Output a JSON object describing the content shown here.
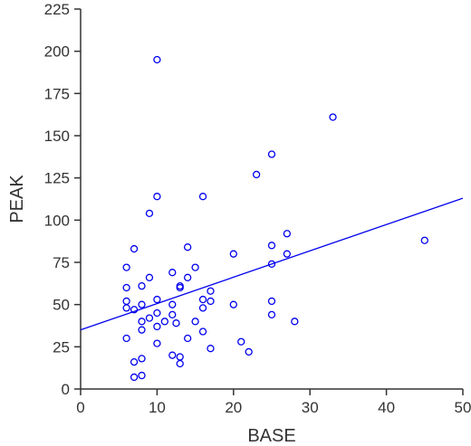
{
  "chart_data": {
    "type": "scatter",
    "title": "",
    "xlabel": "BASE",
    "ylabel": "PEAK",
    "xlim": [
      0,
      50
    ],
    "ylim": [
      0,
      225
    ],
    "xticks": [
      0,
      10,
      20,
      30,
      40,
      50
    ],
    "yticks": [
      0,
      25,
      50,
      75,
      100,
      125,
      150,
      175,
      200,
      225
    ],
    "grid": false,
    "legend": "none",
    "marker": "open-circle",
    "point_color": "#0000ee",
    "line_color": "#0000ee",
    "axis_color": "#333333",
    "points": [
      {
        "x": 6,
        "y": 72
      },
      {
        "x": 6,
        "y": 60
      },
      {
        "x": 6,
        "y": 52
      },
      {
        "x": 6,
        "y": 48
      },
      {
        "x": 6,
        "y": 30
      },
      {
        "x": 7,
        "y": 83
      },
      {
        "x": 7,
        "y": 47
      },
      {
        "x": 7,
        "y": 16
      },
      {
        "x": 7,
        "y": 7
      },
      {
        "x": 8,
        "y": 61
      },
      {
        "x": 8,
        "y": 50
      },
      {
        "x": 8,
        "y": 40
      },
      {
        "x": 8,
        "y": 35
      },
      {
        "x": 8,
        "y": 18
      },
      {
        "x": 8,
        "y": 8
      },
      {
        "x": 9,
        "y": 104
      },
      {
        "x": 9,
        "y": 66
      },
      {
        "x": 9,
        "y": 42
      },
      {
        "x": 10,
        "y": 195
      },
      {
        "x": 10,
        "y": 114
      },
      {
        "x": 10,
        "y": 53
      },
      {
        "x": 10,
        "y": 45
      },
      {
        "x": 10,
        "y": 37
      },
      {
        "x": 10,
        "y": 27
      },
      {
        "x": 11,
        "y": 40
      },
      {
        "x": 12,
        "y": 69
      },
      {
        "x": 12,
        "y": 50
      },
      {
        "x": 12,
        "y": 44
      },
      {
        "x": 12,
        "y": 20
      },
      {
        "x": 12.5,
        "y": 39
      },
      {
        "x": 13,
        "y": 61
      },
      {
        "x": 13,
        "y": 60
      },
      {
        "x": 13,
        "y": 19
      },
      {
        "x": 13,
        "y": 15
      },
      {
        "x": 14,
        "y": 84
      },
      {
        "x": 14,
        "y": 66
      },
      {
        "x": 14,
        "y": 30
      },
      {
        "x": 15,
        "y": 72
      },
      {
        "x": 15,
        "y": 40
      },
      {
        "x": 16,
        "y": 114
      },
      {
        "x": 16,
        "y": 53
      },
      {
        "x": 16,
        "y": 48
      },
      {
        "x": 16,
        "y": 34
      },
      {
        "x": 17,
        "y": 58
      },
      {
        "x": 17,
        "y": 52
      },
      {
        "x": 17,
        "y": 24
      },
      {
        "x": 20,
        "y": 80
      },
      {
        "x": 20,
        "y": 50
      },
      {
        "x": 21,
        "y": 28
      },
      {
        "x": 22,
        "y": 22
      },
      {
        "x": 23,
        "y": 127
      },
      {
        "x": 25,
        "y": 139
      },
      {
        "x": 25,
        "y": 85
      },
      {
        "x": 25,
        "y": 74
      },
      {
        "x": 25,
        "y": 52
      },
      {
        "x": 25,
        "y": 44
      },
      {
        "x": 27,
        "y": 92
      },
      {
        "x": 27,
        "y": 80
      },
      {
        "x": 28,
        "y": 40
      },
      {
        "x": 33,
        "y": 161
      },
      {
        "x": 45,
        "y": 88
      }
    ],
    "trendline": {
      "x1": 0,
      "y1": 35,
      "x2": 50,
      "y2": 113
    }
  }
}
